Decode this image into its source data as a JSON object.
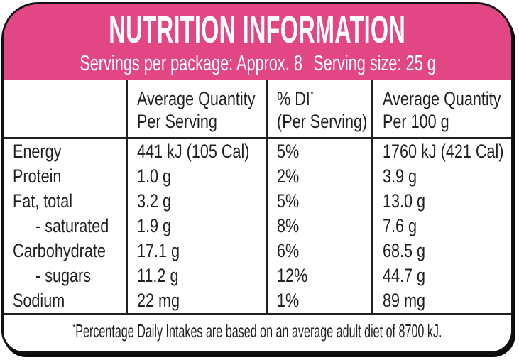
{
  "colors": {
    "header_pink": "#E34685",
    "line_ink": "#231F20"
  },
  "header": {
    "title": "NUTRITION INFORMATION",
    "servings_per_package": "Servings per package: Approx. 8",
    "serving_size": "Serving size: 25 g"
  },
  "table": {
    "header": {
      "per_serving_line1": "Average Quantity",
      "per_serving_line2": "Per Serving",
      "di_line1": "% DI",
      "di_star": "*",
      "di_line2": "(Per Serving)",
      "per_100g_line1": "Average Quantity",
      "per_100g_line2": "Per 100 g"
    },
    "rows": [
      {
        "label": "Energy",
        "per_serving": "441 kJ (105 Cal)",
        "di_percent": "5%",
        "per_100g": "1760 kJ (421 Cal)"
      },
      {
        "label": "Protein",
        "per_serving": "1.0 g",
        "di_percent": "2%",
        "per_100g": "3.9 g"
      },
      {
        "label": "Fat, total",
        "per_serving": "3.2 g",
        "di_percent": "5%",
        "per_100g": "13.0 g"
      },
      {
        "label": "- saturated",
        "per_serving": "1.9 g",
        "di_percent": "8%",
        "per_100g": "7.6 g"
      },
      {
        "label": "Carbohydrate",
        "per_serving": "17.1 g",
        "di_percent": "6%",
        "per_100g": "68.5 g"
      },
      {
        "label": "- sugars",
        "per_serving": "11.2 g",
        "di_percent": "12%",
        "per_100g": "44.7 g"
      },
      {
        "label": "Sodium",
        "per_serving": "22 mg",
        "di_percent": "1%",
        "per_100g": "89 mg"
      }
    ]
  },
  "footnote": {
    "star": "*",
    "text": "Percentage Daily Intakes are based on an average adult diet of 8700 kJ."
  }
}
